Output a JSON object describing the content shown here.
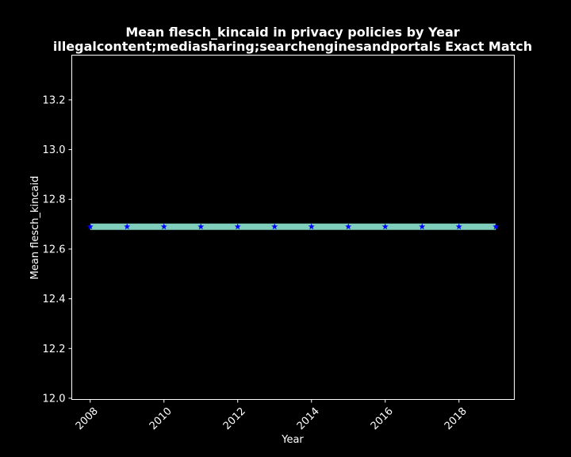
{
  "chart_data": {
    "type": "line",
    "title_line1": "Mean flesch_kincaid in privacy policies by Year",
    "title_line2": "illegalcontent;mediasharing;searchenginesandportals Exact Match",
    "xlabel": "Year",
    "ylabel": "Mean flesch_kincaid",
    "x": [
      2008,
      2009,
      2010,
      2011,
      2012,
      2013,
      2014,
      2015,
      2016,
      2017,
      2018,
      2019
    ],
    "series": [
      {
        "values": [
          12.69,
          12.69,
          12.69,
          12.69,
          12.69,
          12.69,
          12.69,
          12.69,
          12.69,
          12.69,
          12.69,
          12.69
        ],
        "line_color": "#7fcdbb",
        "marker_color": "#0000ff",
        "marker": "star"
      }
    ],
    "xlim": [
      2007.5,
      2019.5
    ],
    "ylim": [
      11.995,
      13.38
    ],
    "xticks": [
      "2008",
      "2010",
      "2012",
      "2014",
      "2016",
      "2018"
    ],
    "yticks": [
      "12.0",
      "12.2",
      "12.4",
      "12.6",
      "12.8",
      "13.0",
      "13.2"
    ],
    "grid": false,
    "background": "#000000",
    "foreground": "#ffffff"
  }
}
